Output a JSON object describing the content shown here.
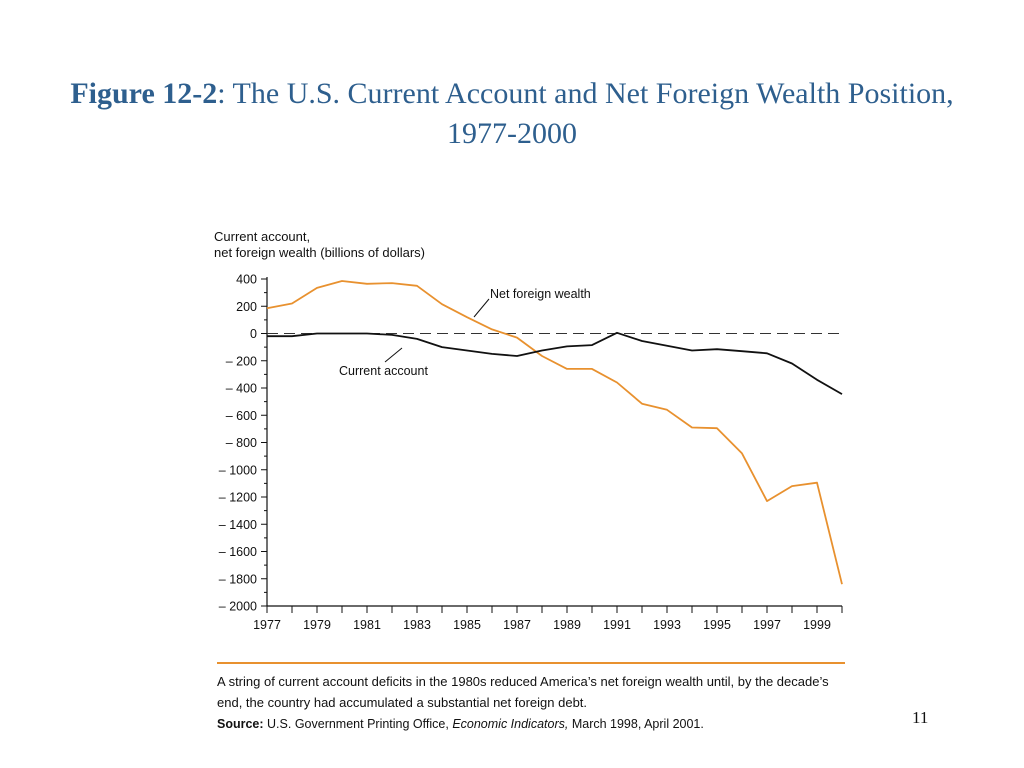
{
  "slide": {
    "title_prefix": "Figure 12-2",
    "title_rest": ": The U.S. Current Account and Net Foreign Wealth Position, 1977-2000",
    "page_number": "11"
  },
  "colors": {
    "title": "#2e5f8e",
    "net_foreign_wealth": "#e8912f",
    "current_account": "#111111",
    "rule": "#e8912f"
  },
  "caption": {
    "text": "A string of current account deficits in the 1980s reduced America’s net foreign wealth until, by the decade’s end, the country had accumulated a substantial net foreign debt.",
    "source_label": "Source:",
    "source_pre": "U.S. Government Printing Office,",
    "source_publication": "Economic Indicators,",
    "source_post": "March 1998, April 2001."
  },
  "chart_data": {
    "type": "line",
    "title": "Figure 12-2: The U.S. Current Account and Net Foreign Wealth Position, 1977-2000",
    "ylabel_line1": "Current account,",
    "ylabel_line2": "net foreign wealth (billions of dollars)",
    "xlabel": "",
    "ylim": [
      -2000,
      400
    ],
    "xlim": [
      1977,
      2000
    ],
    "yticks": [
      400,
      200,
      0,
      -200,
      -400,
      -600,
      -800,
      -1000,
      -1200,
      -1400,
      -1600,
      -1800,
      -2000
    ],
    "ytick_labels": [
      "400",
      "200",
      "0",
      "– 200",
      "– 400",
      "– 600",
      "– 800",
      "– 1000",
      "– 1200",
      "– 1400",
      "– 1600",
      "– 1800",
      "– 2000"
    ],
    "xticks_labeled": [
      "1977",
      "1979",
      "1981",
      "1983",
      "1985",
      "1987",
      "1989",
      "1991",
      "1993",
      "1995",
      "1997",
      "1999"
    ],
    "zero_line": "dashed",
    "grid": false,
    "x": [
      1977,
      1978,
      1979,
      1980,
      1981,
      1982,
      1983,
      1984,
      1985,
      1986,
      1987,
      1988,
      1989,
      1990,
      1991,
      1992,
      1993,
      1994,
      1995,
      1996,
      1997,
      1998,
      1999,
      2000
    ],
    "series": [
      {
        "name": "Net foreign wealth",
        "values": [
          185,
          220,
          335,
          385,
          365,
          370,
          350,
          215,
          120,
          30,
          -30,
          -165,
          -260,
          -260,
          -360,
          -515,
          -560,
          -690,
          -695,
          -880,
          -1230,
          -1120,
          -1095,
          -1840
        ]
      },
      {
        "name": "Current account",
        "values": [
          -20,
          -20,
          0,
          0,
          0,
          -10,
          -40,
          -100,
          -125,
          -150,
          -165,
          -125,
          -95,
          -85,
          5,
          -55,
          -90,
          -125,
          -115,
          -130,
          -145,
          -220,
          -340,
          -445
        ]
      }
    ],
    "annotations": [
      {
        "text": "Net foreign wealth",
        "series": "Net foreign wealth"
      },
      {
        "text": "Current account",
        "series": "Current account"
      }
    ]
  }
}
